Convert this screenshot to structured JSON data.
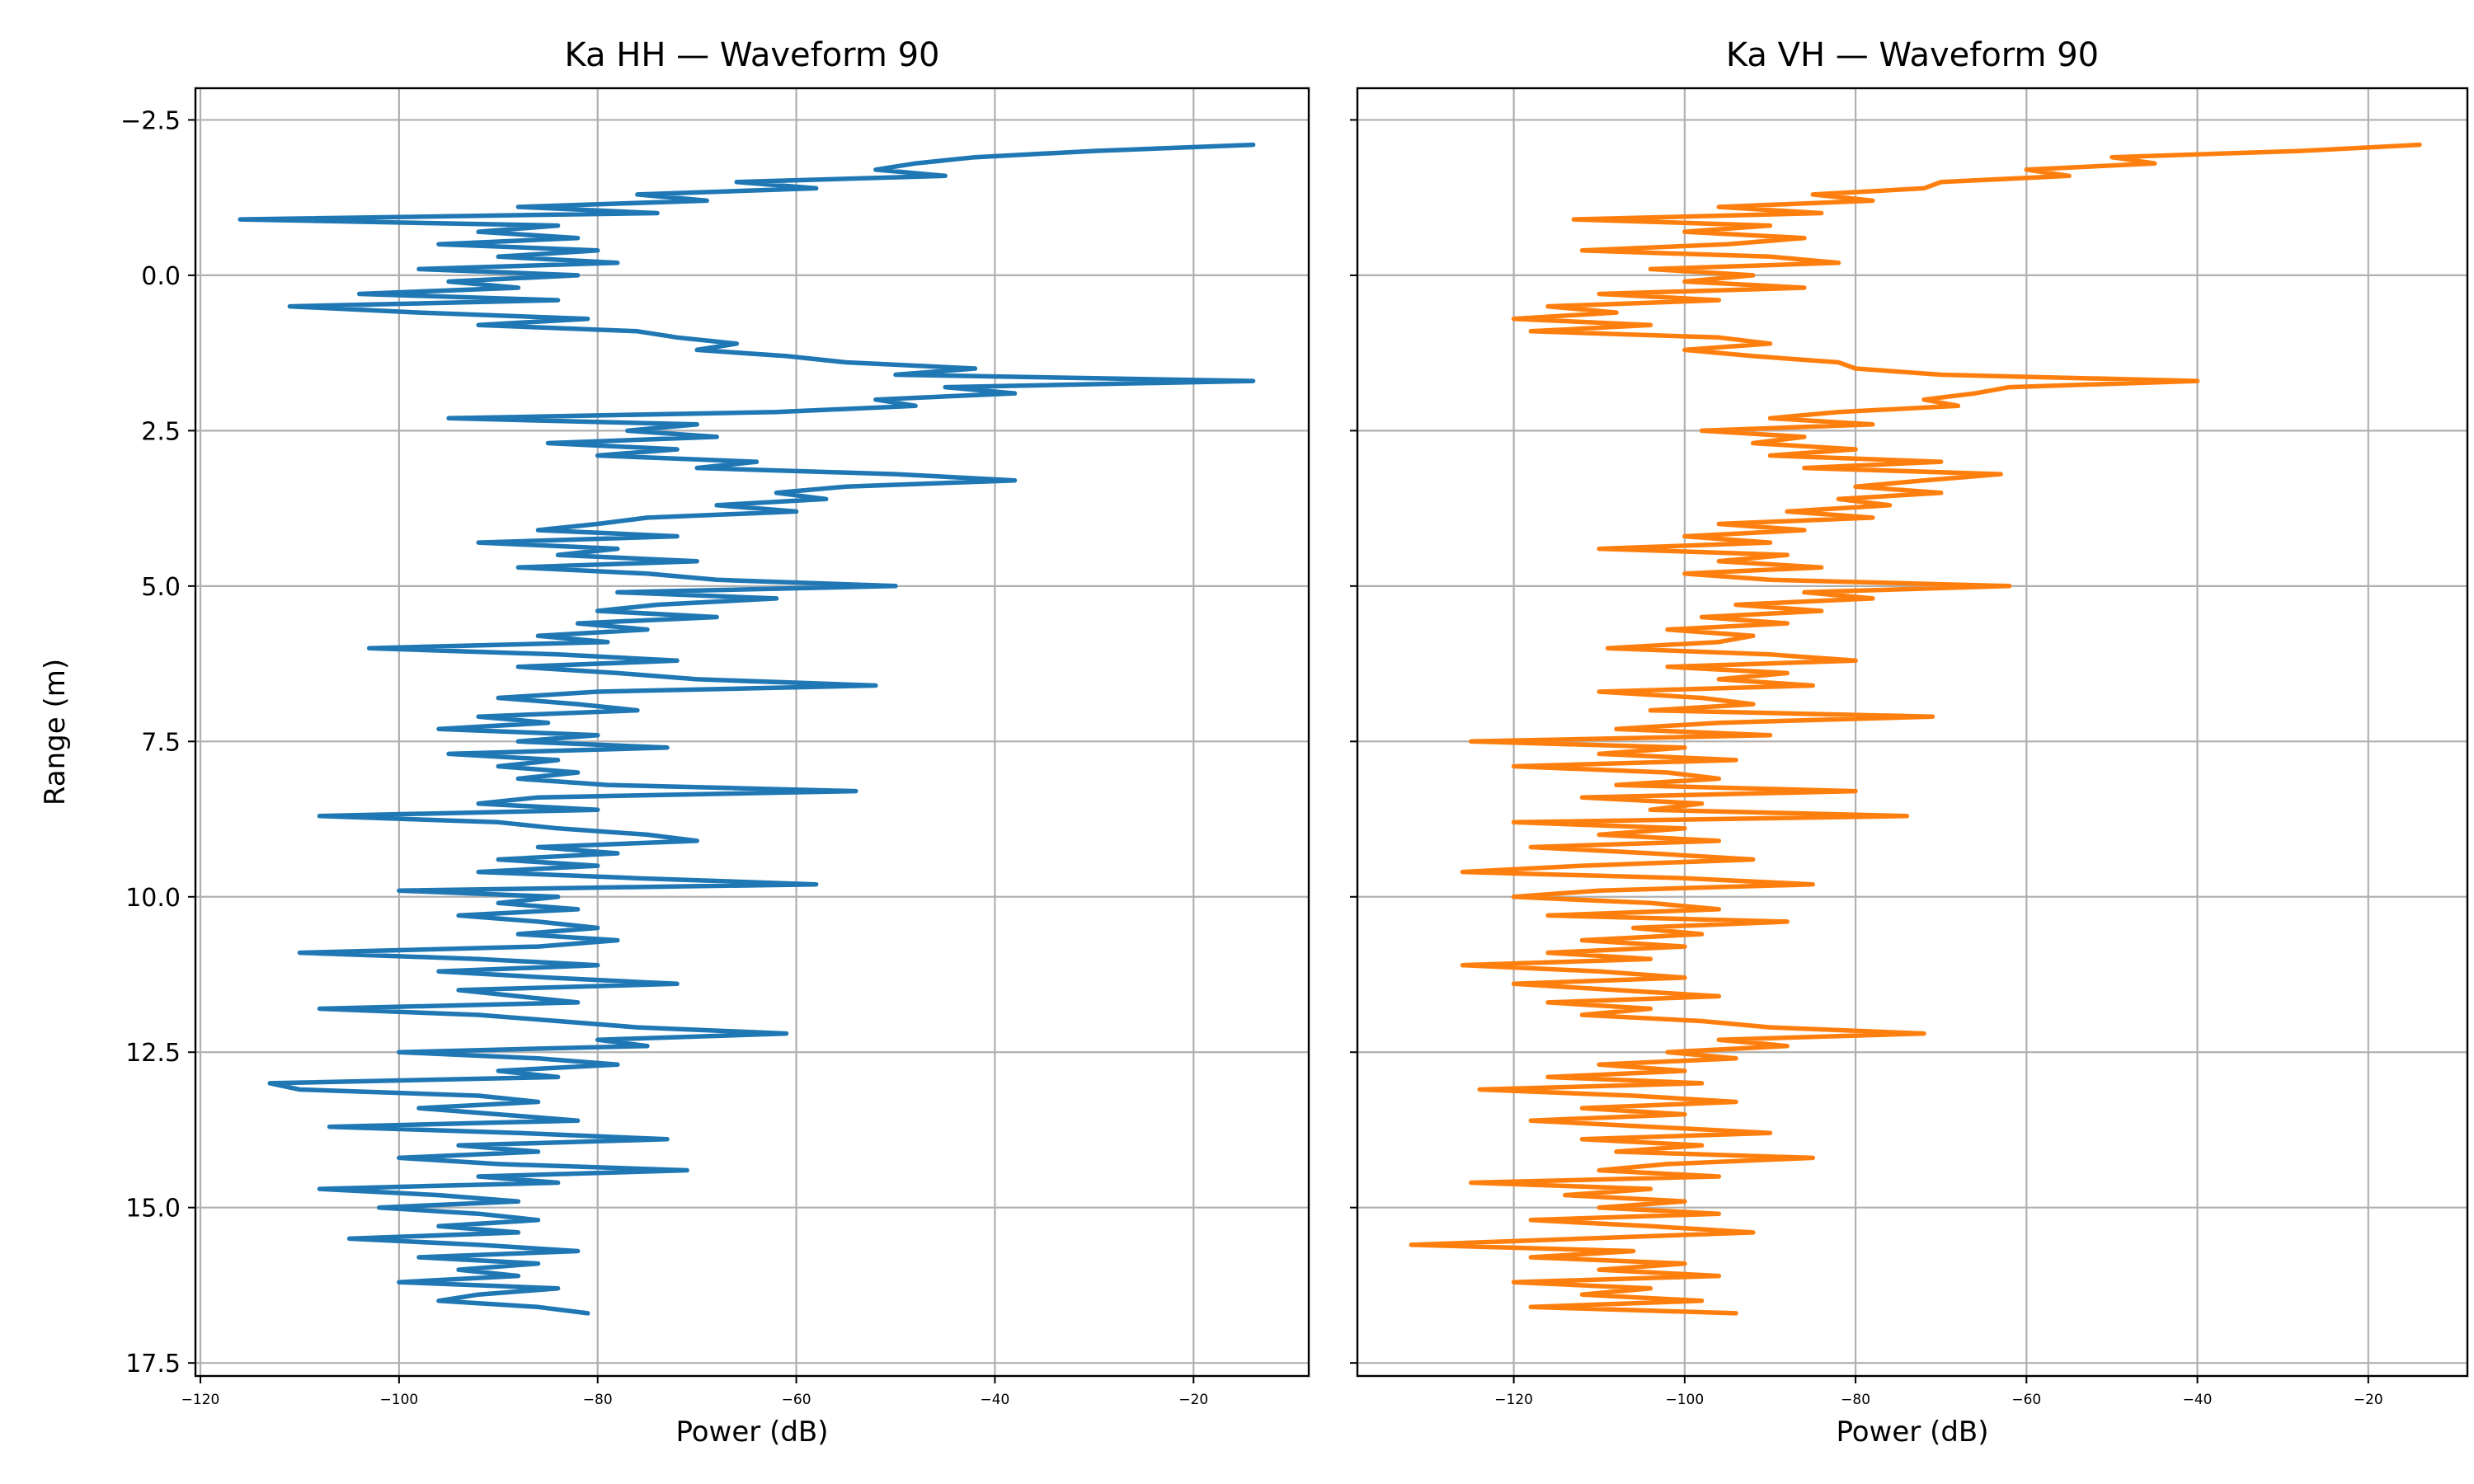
{
  "chart_data": [
    {
      "type": "line",
      "title": "Ka HH — Waveform 90",
      "xlabel": "Power (dB)",
      "ylabel": "Range (m)",
      "xlim": [
        -120.5,
        -8.4
      ],
      "ylim": [
        17.71,
        -3.01
      ],
      "y_inverted": true,
      "grid": true,
      "xticks": [
        -120,
        -100,
        -80,
        -60,
        -40,
        -20
      ],
      "xtick_labels": [
        "−120",
        "−100",
        "−80",
        "−60",
        "−40",
        "−20"
      ],
      "yticks": [
        -2.5,
        0,
        2.5,
        5,
        7.5,
        10,
        12.5,
        15,
        17.5
      ],
      "ytick_labels": [
        "−2.5",
        "0.0",
        "2.5",
        "5.0",
        "7.5",
        "10.0",
        "12.5",
        "15.0",
        "17.5"
      ],
      "show_ytick_labels": true,
      "color": "#1f77b4",
      "series": [
        {
          "name": "Ka HH",
          "range_start": -2.1,
          "range_step": 0.1,
          "power": [
            -14,
            -30,
            -42,
            -48,
            -52,
            -45,
            -66,
            -58,
            -76,
            -69,
            -88,
            -74,
            -116,
            -84,
            -92,
            -82,
            -96,
            -80,
            -90,
            -78,
            -98,
            -82,
            -95,
            -88,
            -104,
            -84,
            -111,
            -98,
            -81,
            -92,
            -76,
            -72,
            -66,
            -70,
            -61,
            -55,
            -42,
            -50,
            -14,
            -45,
            -38,
            -52,
            -48,
            -62,
            -95,
            -70,
            -77,
            -68,
            -85,
            -72,
            -80,
            -64,
            -70,
            -50,
            -38,
            -55,
            -62,
            -57,
            -68,
            -60,
            -75,
            -80,
            -86,
            -72,
            -92,
            -78,
            -84,
            -70,
            -88,
            -75,
            -68,
            -50,
            -78,
            -62,
            -74,
            -80,
            -68,
            -82,
            -75,
            -86,
            -79,
            -103,
            -84,
            -72,
            -88,
            -78,
            -70,
            -52,
            -80,
            -90,
            -82,
            -76,
            -92,
            -85,
            -96,
            -80,
            -88,
            -73,
            -95,
            -84,
            -90,
            -82,
            -88,
            -79,
            -54,
            -86,
            -92,
            -80,
            -108,
            -90,
            -84,
            -75,
            -70,
            -86,
            -78,
            -90,
            -80,
            -92,
            -76,
            -58,
            -100,
            -84,
            -90,
            -82,
            -94,
            -86,
            -80,
            -88,
            -78,
            -86,
            -110,
            -92,
            -80,
            -96,
            -85,
            -72,
            -94,
            -88,
            -82,
            -108,
            -92,
            -84,
            -76,
            -61,
            -80,
            -75,
            -100,
            -86,
            -78,
            -90,
            -84,
            -113,
            -110,
            -92,
            -86,
            -98,
            -90,
            -82,
            -107,
            -88,
            -73,
            -94,
            -86,
            -100,
            -90,
            -71,
            -92,
            -84,
            -108,
            -96,
            -88,
            -102,
            -92,
            -86,
            -96,
            -88,
            -105,
            -92,
            -82,
            -98,
            -86,
            -94,
            -88,
            -100,
            -84,
            -92,
            -96,
            -86,
            -81
          ]
        }
      ]
    },
    {
      "type": "line",
      "title": "Ka VH — Waveform 90",
      "xlabel": "Power (dB)",
      "ylabel": "",
      "xlim": [
        -138.3,
        -8.4
      ],
      "ylim": [
        17.71,
        -3.01
      ],
      "y_inverted": true,
      "grid": true,
      "xticks": [
        -120,
        -100,
        -80,
        -60,
        -40,
        -20
      ],
      "xtick_labels": [
        "−120",
        "−100",
        "−80",
        "−60",
        "−40",
        "−20"
      ],
      "yticks": [
        -2.5,
        0,
        2.5,
        5,
        7.5,
        10,
        12.5,
        15,
        17.5
      ],
      "show_ytick_labels": false,
      "color": "#ff7f0e",
      "series": [
        {
          "name": "Ka VH",
          "range_start": -2.1,
          "range_step": 0.1,
          "power": [
            -14,
            -28,
            -50,
            -45,
            -60,
            -55,
            -70,
            -72,
            -85,
            -78,
            -96,
            -84,
            -113,
            -90,
            -100,
            -86,
            -95,
            -112,
            -90,
            -82,
            -104,
            -92,
            -100,
            -86,
            -110,
            -96,
            -116,
            -108,
            -120,
            -104,
            -118,
            -96,
            -90,
            -100,
            -92,
            -82,
            -80,
            -70,
            -40,
            -62,
            -66,
            -72,
            -68,
            -82,
            -90,
            -78,
            -98,
            -86,
            -92,
            -80,
            -90,
            -70,
            -86,
            -63,
            -72,
            -80,
            -70,
            -82,
            -76,
            -88,
            -78,
            -96,
            -86,
            -100,
            -90,
            -110,
            -88,
            -96,
            -84,
            -100,
            -90,
            -62,
            -86,
            -78,
            -94,
            -84,
            -98,
            -88,
            -102,
            -92,
            -96,
            -109,
            -90,
            -80,
            -102,
            -88,
            -96,
            -85,
            -110,
            -98,
            -92,
            -104,
            -71,
            -96,
            -108,
            -90,
            -125,
            -100,
            -110,
            -94,
            -120,
            -102,
            -96,
            -108,
            -80,
            -112,
            -98,
            -104,
            -74,
            -120,
            -100,
            -110,
            -96,
            -118,
            -104,
            -92,
            -112,
            -126,
            -100,
            -85,
            -110,
            -120,
            -104,
            -96,
            -116,
            -88,
            -106,
            -98,
            -112,
            -100,
            -116,
            -104,
            -126,
            -110,
            -100,
            -120,
            -108,
            -96,
            -116,
            -104,
            -112,
            -98,
            -90,
            -72,
            -96,
            -88,
            -102,
            -94,
            -110,
            -100,
            -116,
            -98,
            -124,
            -106,
            -94,
            -112,
            -100,
            -118,
            -104,
            -90,
            -112,
            -98,
            -108,
            -85,
            -102,
            -110,
            -96,
            -125,
            -104,
            -114,
            -100,
            -110,
            -96,
            -118,
            -104,
            -92,
            -112,
            -132,
            -106,
            -118,
            -100,
            -110,
            -96,
            -120,
            -104,
            -112,
            -98,
            -118,
            -94
          ]
        }
      ]
    }
  ]
}
